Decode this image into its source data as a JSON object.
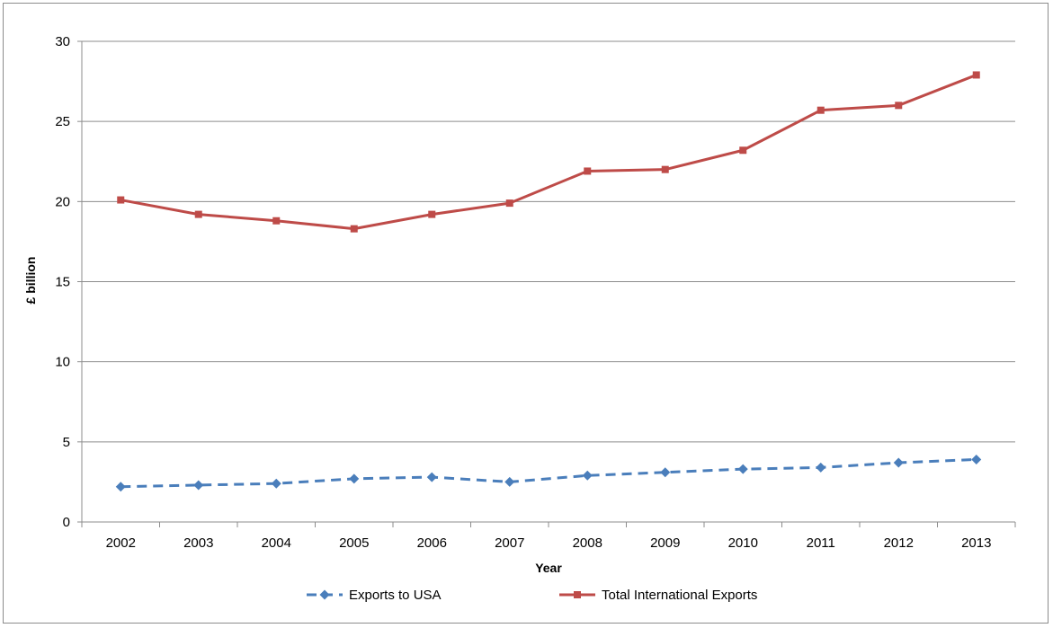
{
  "chart_data": {
    "type": "line",
    "title": "",
    "xlabel": "Year",
    "ylabel": "£ billion",
    "ylim": [
      0,
      30
    ],
    "yticks": [
      0,
      5,
      10,
      15,
      20,
      25,
      30
    ],
    "grid": "horizontal",
    "legend_position": "bottom",
    "categories": [
      "2002",
      "2003",
      "2004",
      "2005",
      "2006",
      "2007",
      "2008",
      "2009",
      "2010",
      "2011",
      "2012",
      "2013"
    ],
    "series": [
      {
        "name": "Exports to USA",
        "color": "#4a7ebb",
        "marker": "diamond",
        "line_style": "dashed",
        "values": [
          2.2,
          2.3,
          2.4,
          2.7,
          2.8,
          2.5,
          2.9,
          3.1,
          3.3,
          3.4,
          3.7,
          3.9
        ]
      },
      {
        "name": "Total International Exports",
        "color": "#be4b48",
        "marker": "square",
        "line_style": "solid",
        "values": [
          20.1,
          19.2,
          18.8,
          18.3,
          19.2,
          19.9,
          21.9,
          22.0,
          23.2,
          25.7,
          26.0,
          27.9
        ]
      }
    ]
  }
}
